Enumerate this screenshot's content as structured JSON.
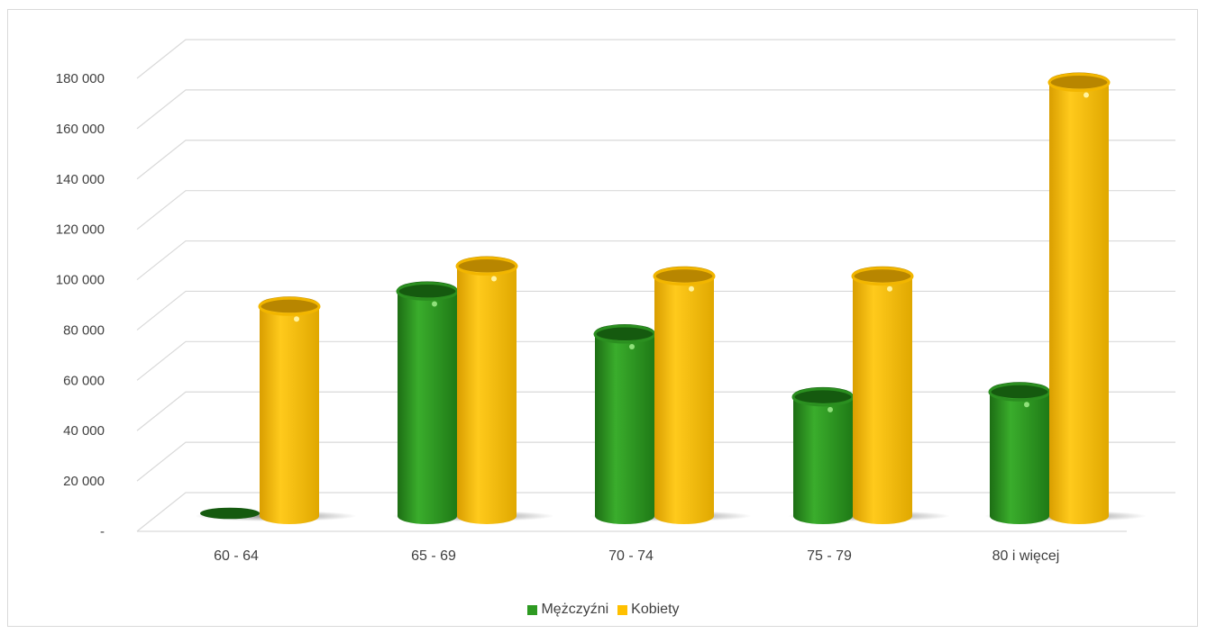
{
  "chart_data": {
    "type": "bar",
    "title": "",
    "xlabel": "",
    "ylabel": "",
    "categories": [
      "60 - 64",
      "65 - 69",
      "70 - 74",
      "75 - 79",
      "80 i więcej"
    ],
    "series": [
      {
        "name": "Mężczyźni",
        "color": "#2e9a22",
        "values": [
          600,
          90000,
          73000,
          48000,
          50000
        ]
      },
      {
        "name": "Kobiety",
        "color": "#ffc000",
        "values": [
          84000,
          100000,
          96000,
          96000,
          173000
        ]
      }
    ],
    "ylim": [
      0,
      190000
    ],
    "yticks": [
      0,
      20000,
      40000,
      60000,
      80000,
      100000,
      120000,
      140000,
      160000,
      180000
    ],
    "ytick_labels": [
      "-",
      "20 000",
      "40 000",
      "60 000",
      "80 000",
      "100 000",
      "120 000",
      "140 000",
      "160 000",
      "180 000"
    ],
    "grid": true,
    "legend": "bottom",
    "style": "3d-cylinder"
  }
}
